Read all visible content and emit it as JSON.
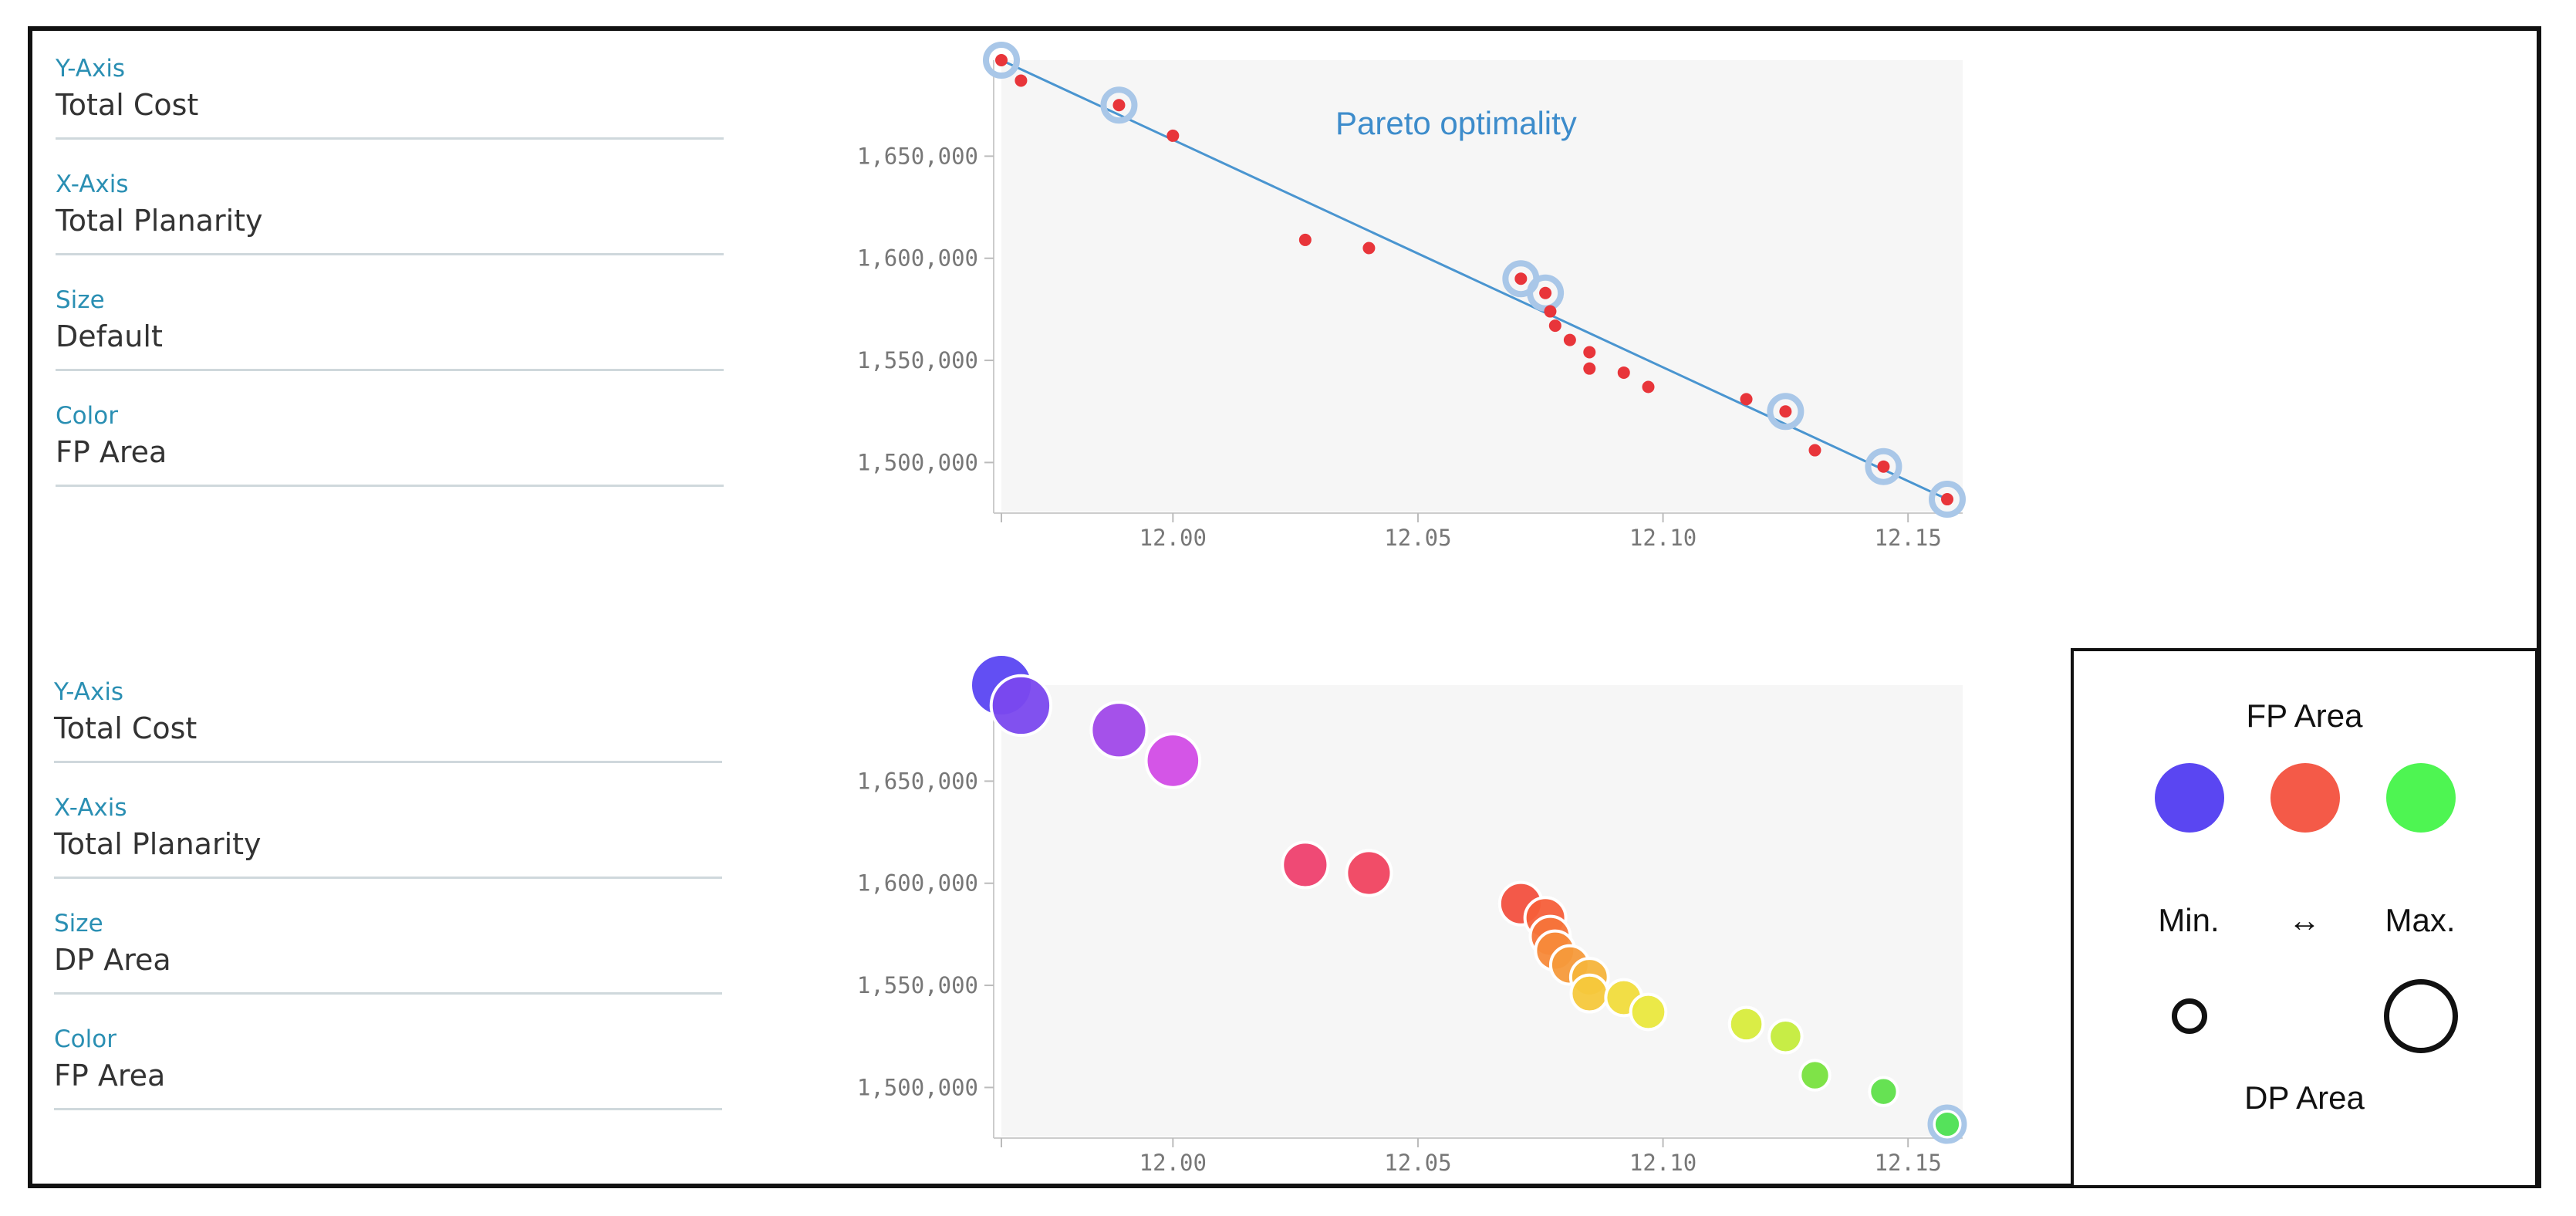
{
  "panels": [
    {
      "fields": [
        {
          "label": "Y-Axis",
          "value": "Total Cost"
        },
        {
          "label": "X-Axis",
          "value": "Total Planarity"
        },
        {
          "label": "Size",
          "value": "Default"
        },
        {
          "label": "Color",
          "value": "FP Area"
        }
      ]
    },
    {
      "fields": [
        {
          "label": "Y-Axis",
          "value": "Total Cost"
        },
        {
          "label": "X-Axis",
          "value": "Total Planarity"
        },
        {
          "label": "Size",
          "value": "DP Area"
        },
        {
          "label": "Color",
          "value": "FP Area"
        }
      ]
    }
  ],
  "legend": {
    "title": "FP Area",
    "min_label": "Min.",
    "arrow": "↔",
    "max_label": "Max.",
    "size_title": "DP Area",
    "colors": [
      "#5a46f2",
      "#f45a48",
      "#4ef552"
    ]
  },
  "chart_data": [
    {
      "type": "scatter",
      "title": "",
      "xlabel": "Total Planarity",
      "ylabel": "Total Cost",
      "annotation": "Pareto optimality",
      "xlim": [
        11.965,
        12.158
      ],
      "ylim": [
        1479000,
        1697000
      ],
      "xticks": [
        12.0,
        12.05,
        12.1,
        12.15
      ],
      "xtick_labels": [
        "12.00",
        "12.05",
        "12.10",
        "12.15"
      ],
      "yticks": [
        1500000,
        1550000,
        1600000,
        1650000
      ],
      "ytick_labels": [
        "1,500,000",
        "1,550,000",
        "1,600,000",
        "1,650,000"
      ],
      "point_color": "#e8353a",
      "x": [
        11.965,
        11.969,
        11.989,
        12.0,
        12.027,
        12.04,
        12.071,
        12.076,
        12.077,
        12.078,
        12.081,
        12.085,
        12.085,
        12.092,
        12.097,
        12.117,
        12.125,
        12.131,
        12.145,
        12.158
      ],
      "y": [
        1697000,
        1687000,
        1675000,
        1660000,
        1609000,
        1605000,
        1590000,
        1583000,
        1574000,
        1567000,
        1560000,
        1554000,
        1546000,
        1544000,
        1537000,
        1531000,
        1525000,
        1506000,
        1498000,
        1482000
      ],
      "pareto_x": [
        11.965,
        11.989,
        12.071,
        12.076,
        12.125,
        12.145,
        12.158
      ],
      "pareto_y": [
        1697000,
        1675000,
        1590000,
        1583000,
        1525000,
        1498000,
        1482000
      ]
    },
    {
      "type": "scatter",
      "title": "",
      "xlabel": "Total Planarity",
      "ylabel": "Total Cost",
      "size_by": "DP Area",
      "color_by": "FP Area",
      "xlim": [
        11.965,
        12.158
      ],
      "ylim": [
        1479000,
        1697000
      ],
      "xticks": [
        12.0,
        12.05,
        12.1,
        12.15
      ],
      "xtick_labels": [
        "12.00",
        "12.05",
        "12.10",
        "12.15"
      ],
      "yticks": [
        1500000,
        1550000,
        1600000,
        1650000
      ],
      "ytick_labels": [
        "1,500,000",
        "1,550,000",
        "1,600,000",
        "1,650,000"
      ],
      "x": [
        11.965,
        11.969,
        11.989,
        12.0,
        12.027,
        12.04,
        12.071,
        12.076,
        12.077,
        12.078,
        12.081,
        12.085,
        12.085,
        12.092,
        12.097,
        12.117,
        12.125,
        12.131,
        12.145,
        12.158
      ],
      "y": [
        1697000,
        1687000,
        1675000,
        1660000,
        1609000,
        1605000,
        1590000,
        1583000,
        1574000,
        1567000,
        1560000,
        1554000,
        1546000,
        1544000,
        1537000,
        1531000,
        1525000,
        1506000,
        1498000,
        1482000
      ],
      "dp_area": [
        1.0,
        0.95,
        0.85,
        0.8,
        0.6,
        0.58,
        0.52,
        0.48,
        0.46,
        0.44,
        0.42,
        0.4,
        0.38,
        0.36,
        0.34,
        0.3,
        0.28,
        0.2,
        0.16,
        0.12
      ],
      "colors": [
        "#5a46f2",
        "#7a48ee",
        "#a048e9",
        "#d24ce6",
        "#ee406e",
        "#f04360",
        "#f2503f",
        "#f55f3a",
        "#f6743a",
        "#f78a3a",
        "#f59a3b",
        "#f6b43c",
        "#f6c83c",
        "#f1dc3c",
        "#eae83e",
        "#d8ec3c",
        "#c4ec3c",
        "#78e23e",
        "#5ee04a",
        "#4ce052"
      ]
    }
  ]
}
